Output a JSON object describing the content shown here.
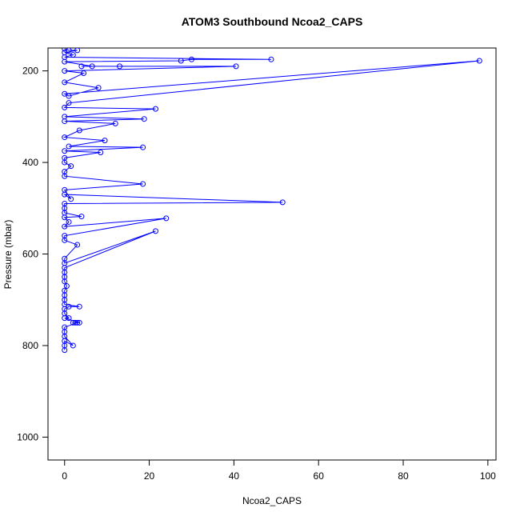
{
  "chart_data": {
    "type": "line",
    "title": "ATOM3 Southbound Ncoa2_CAPS",
    "x_label": "Ncoa2_CAPS",
    "y_label": "Pressure (mbar)",
    "xlim": [
      -3.92,
      101.92
    ],
    "xticks": [
      0,
      20,
      40,
      60,
      80,
      100
    ],
    "ylim": [
      150,
      1050
    ],
    "yticks": [
      200,
      400,
      600,
      800,
      1000
    ],
    "y_inverted": true,
    "markers": true,
    "series": [
      {
        "name": "Ncoa2_CAPS",
        "color": "#0000ff",
        "x": [
          0,
          0,
          0,
          2,
          0,
          0,
          0,
          3,
          2.5,
          2,
          3.5,
          0,
          1,
          0,
          0,
          1,
          3.5,
          0,
          0,
          0,
          0,
          0.5,
          0,
          0,
          0,
          0,
          21.5,
          0,
          0,
          3,
          0,
          0,
          24,
          0,
          1,
          0,
          4,
          0,
          0,
          0,
          51.5,
          0,
          1.5,
          0,
          18.5,
          0,
          0,
          1.5,
          0,
          0,
          8.5,
          0,
          18.5,
          1,
          9.5,
          0,
          3.5,
          12,
          0,
          18.8,
          0,
          21.5,
          0,
          1,
          98,
          0,
          1,
          8,
          0,
          4.5,
          0,
          40.5,
          13,
          4,
          6.5,
          0,
          27.5,
          30,
          48.8,
          0,
          2,
          0,
          3,
          1,
          0
        ],
        "values": [
          810,
          800,
          790,
          800,
          780,
          770,
          760,
          750,
          750,
          750,
          750,
          740,
          740,
          730,
          720,
          715,
          715,
          710,
          700,
          690,
          680,
          670,
          660,
          650,
          640,
          630,
          550,
          620,
          610,
          580,
          570,
          560,
          522,
          540,
          530,
          520,
          518,
          510,
          500,
          490,
          487,
          470,
          480,
          460,
          447,
          430,
          420,
          408,
          400,
          390,
          378,
          375,
          367,
          365,
          352,
          345,
          330,
          315,
          310,
          305,
          300,
          283,
          280,
          270,
          178,
          250,
          255,
          237,
          225,
          205,
          200,
          190,
          190,
          190,
          190,
          180,
          178,
          175,
          175,
          170,
          165,
          160,
          155,
          155,
          152
        ]
      }
    ]
  }
}
